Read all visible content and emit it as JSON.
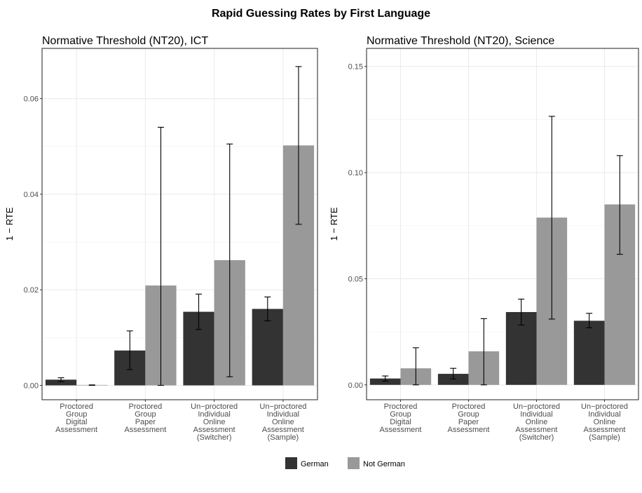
{
  "title": "Rapid Guessing Rates by First Language",
  "legend": [
    {
      "label": "German",
      "color": "#333333"
    },
    {
      "label": "Not German",
      "color": "#999999"
    }
  ],
  "chart_data": [
    {
      "type": "bar",
      "title": "Normative Threshold (NT20), ICT",
      "ylabel": "1 − RTE",
      "xlabel": "",
      "ylim": [
        -0.003,
        0.0705
      ],
      "yticks": [
        0.0,
        0.02,
        0.04,
        0.06
      ],
      "ytick_labels": [
        "0.00",
        "0.02",
        "0.04",
        "0.06"
      ],
      "grid": true,
      "categories": [
        [
          "Proctored",
          "Group",
          "Digital",
          "Assessment"
        ],
        [
          "Proctored",
          "Group",
          "Paper",
          "Assessment"
        ],
        [
          "Un−proctored",
          "Individual",
          "Online",
          "Assessment",
          "(Switcher)"
        ],
        [
          "Un−proctored",
          "Individual",
          "Online",
          "Assessment",
          "(Sample)"
        ]
      ],
      "series": [
        {
          "name": "German",
          "values": [
            0.0012,
            0.0073,
            0.0154,
            0.016
          ],
          "err_low": [
            0.0008,
            0.0033,
            0.0117,
            0.0135
          ],
          "err_high": [
            0.0016,
            0.0114,
            0.0191,
            0.0185
          ]
        },
        {
          "name": "Not German",
          "values": [
            0.0001,
            0.0209,
            0.0262,
            0.0502
          ],
          "err_low": [
            0.0,
            0.0,
            0.0018,
            0.0337
          ],
          "err_high": [
            0.0001,
            0.054,
            0.0505,
            0.0667
          ]
        }
      ],
      "legend_position": "bottom"
    },
    {
      "type": "bar",
      "title": "Normative Threshold (NT20), Science",
      "ylabel": "1 − RTE",
      "xlabel": "",
      "ylim": [
        -0.007,
        0.1585
      ],
      "yticks": [
        0.0,
        0.05,
        0.1,
        0.15
      ],
      "ytick_labels": [
        "0.00",
        "0.05",
        "0.10",
        "0.15"
      ],
      "grid": true,
      "categories": [
        [
          "Proctored",
          "Group",
          "Digital",
          "Assessment"
        ],
        [
          "Proctored",
          "Group",
          "Paper",
          "Assessment"
        ],
        [
          "Un−proctored",
          "Individual",
          "Online",
          "Assessment",
          "(Switcher)"
        ],
        [
          "Un−proctored",
          "Individual",
          "Online",
          "Assessment",
          "(Sample)"
        ]
      ],
      "series": [
        {
          "name": "German",
          "values": [
            0.003,
            0.0052,
            0.0343,
            0.0302
          ],
          "err_low": [
            0.0018,
            0.0028,
            0.0282,
            0.0269
          ],
          "err_high": [
            0.0042,
            0.0078,
            0.0404,
            0.0337
          ]
        },
        {
          "name": "Not German",
          "values": [
            0.0078,
            0.0158,
            0.0788,
            0.085
          ],
          "err_low": [
            0.0,
            0.0,
            0.031,
            0.0615
          ],
          "err_high": [
            0.0175,
            0.0312,
            0.1265,
            0.108
          ]
        }
      ],
      "legend_position": "bottom"
    }
  ]
}
